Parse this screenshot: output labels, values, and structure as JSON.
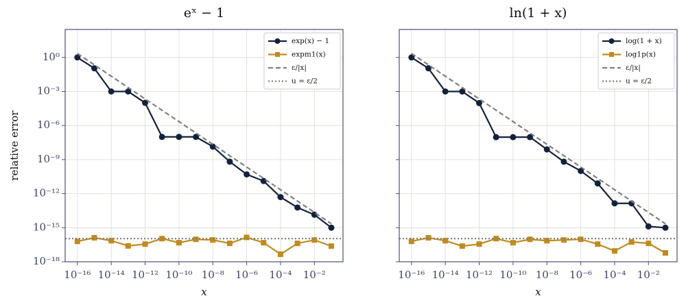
{
  "chart_data": [
    {
      "type": "line",
      "title": "eˣ − 1",
      "xlabel": "x",
      "ylabel": "relative error",
      "xscale": "log",
      "yscale": "log",
      "grid": true,
      "legend": "upper right",
      "show_ytick_labels": true,
      "xlim": [
        1.9e-17,
        0.49
      ],
      "ylim": [
        1e-18,
        290
      ],
      "xticks": [
        {
          "value": 1e-16,
          "label": "10⁻¹⁶"
        },
        {
          "value": 1e-14,
          "label": "10⁻¹⁴"
        },
        {
          "value": 1e-12,
          "label": "10⁻¹²"
        },
        {
          "value": 1e-10,
          "label": "10⁻¹⁰"
        },
        {
          "value": 1e-08,
          "label": "10⁻⁸"
        },
        {
          "value": 1e-06,
          "label": "10⁻⁶"
        },
        {
          "value": 0.0001,
          "label": "10⁻⁴"
        },
        {
          "value": 0.01,
          "label": "10⁻²"
        }
      ],
      "yticks": [
        {
          "value": 1,
          "label": "10⁰"
        },
        {
          "value": 0.001,
          "label": "10⁻³"
        },
        {
          "value": 1e-06,
          "label": "10⁻⁶"
        },
        {
          "value": 1e-09,
          "label": "10⁻⁹"
        },
        {
          "value": 1e-12,
          "label": "10⁻¹²"
        },
        {
          "value": 1e-15,
          "label": "10⁻¹⁵"
        },
        {
          "value": 1e-18,
          "label": "10⁻¹⁸"
        }
      ],
      "x": [
        1e-16,
        1e-15,
        1e-14,
        1e-13,
        1e-12,
        1e-11,
        1e-10,
        1e-09,
        1e-08,
        1e-07,
        1e-06,
        1e-05,
        0.0001,
        0.001,
        0.01,
        0.1
      ],
      "series": [
        {
          "name": "exp(x) − 1",
          "color": "#14213d",
          "style": "solid",
          "marker": "circle",
          "values": [
            1.0,
            0.11,
            0.001,
            0.001,
            0.0001,
            1e-07,
            1e-07,
            1e-07,
            1.4e-08,
            6.6e-10,
            5e-11,
            1.3e-11,
            5e-13,
            6e-14,
            1.4e-14,
            1e-15
          ]
        },
        {
          "name": "expm1(x)",
          "color": "#c08a1e",
          "style": "solid",
          "marker": "square",
          "values": [
            6.3e-17,
            1.3e-16,
            7.2e-17,
            2.5e-17,
            3.6e-17,
            1.1e-16,
            4.8e-17,
            9.5e-17,
            8.3e-17,
            4.2e-17,
            1.4e-16,
            4.8e-17,
            4.6e-18,
            4.2e-17,
            8.3e-17,
            2.4e-17
          ]
        },
        {
          "name": "ε/|x|",
          "color": "#808080",
          "style": "dashed",
          "marker": "none",
          "values": [
            2.22,
            0.222,
            0.0222,
            0.00222,
            0.000222,
            2.22e-05,
            2.22e-06,
            2.22e-07,
            2.22e-08,
            2.22e-09,
            2.22e-10,
            2.22e-11,
            2.22e-12,
            2.22e-13,
            2.22e-14,
            2.22e-15
          ]
        },
        {
          "name": "u = ε/2",
          "color": "#808080",
          "style": "dotted",
          "marker": "none",
          "hline": 1.11e-16
        }
      ]
    },
    {
      "type": "line",
      "title": "ln(1 + x)",
      "xlabel": "x",
      "xscale": "log",
      "yscale": "log",
      "grid": true,
      "legend": "upper right",
      "show_ytick_labels": false,
      "xlim": [
        1.9e-17,
        0.49
      ],
      "ylim": [
        1e-18,
        290
      ],
      "xticks": [
        {
          "value": 1e-16,
          "label": "10⁻¹⁶"
        },
        {
          "value": 1e-14,
          "label": "10⁻¹⁴"
        },
        {
          "value": 1e-12,
          "label": "10⁻¹²"
        },
        {
          "value": 1e-10,
          "label": "10⁻¹⁰"
        },
        {
          "value": 1e-08,
          "label": "10⁻⁸"
        },
        {
          "value": 1e-06,
          "label": "10⁻⁶"
        },
        {
          "value": 0.0001,
          "label": "10⁻⁴"
        },
        {
          "value": 0.01,
          "label": "10⁻²"
        }
      ],
      "yticks": [
        1,
        0.001,
        1e-06,
        1e-09,
        1e-12,
        1e-15,
        1e-18
      ],
      "x": [
        1e-16,
        1e-15,
        1e-14,
        1e-13,
        1e-12,
        1e-11,
        1e-10,
        1e-09,
        1e-08,
        1e-07,
        1e-06,
        1e-05,
        0.0001,
        0.001,
        0.01,
        0.1
      ],
      "series": [
        {
          "name": "log(1 + x)",
          "color": "#14213d",
          "style": "solid",
          "marker": "circle",
          "values": [
            1.0,
            0.11,
            0.001,
            0.001,
            9.5e-05,
            9.5e-08,
            9.5e-08,
            9.5e-08,
            7.9e-09,
            6.6e-10,
            1e-10,
            8e-12,
            1.4e-13,
            1.4e-13,
            1.3e-15,
            1e-15
          ]
        },
        {
          "name": "log1p(x)",
          "color": "#c08a1e",
          "style": "solid",
          "marker": "square",
          "values": [
            6.3e-17,
            1.3e-16,
            7.2e-17,
            2.4e-17,
            3.6e-17,
            1.1e-16,
            4.8e-17,
            9.5e-17,
            7.2e-17,
            8.3e-17,
            9.5e-17,
            3.6e-17,
            9e-18,
            5.5e-17,
            4.2e-17,
            6e-18
          ]
        },
        {
          "name": "ε/|x|",
          "color": "#808080",
          "style": "dashed",
          "marker": "none",
          "values": [
            2.22,
            0.222,
            0.0222,
            0.00222,
            0.000222,
            2.22e-05,
            2.22e-06,
            2.22e-07,
            2.22e-08,
            2.22e-09,
            2.22e-10,
            2.22e-11,
            2.22e-12,
            2.22e-13,
            2.22e-14,
            2.22e-15
          ]
        },
        {
          "name": "u = ε/2",
          "color": "#808080",
          "style": "dotted",
          "marker": "none",
          "hline": 1.11e-16
        }
      ]
    }
  ]
}
